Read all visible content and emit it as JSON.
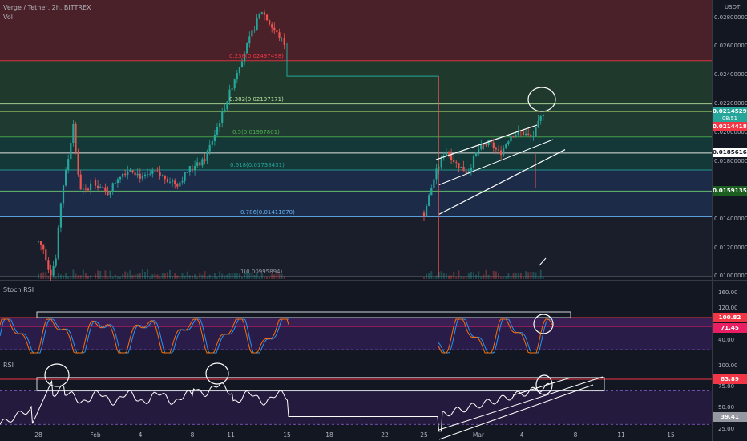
{
  "header": {
    "title": "Verge / Tether, 2h, BITTREX",
    "vol_label": "Vol",
    "currency": "USDT"
  },
  "panes": {
    "stoch_rsi": {
      "title": "Stoch RSI"
    },
    "rsi": {
      "title": "RSI"
    }
  },
  "colors": {
    "background": "#131722",
    "up_candle": "#26a69a",
    "down_candle": "#ef5350",
    "fib_red_zone": "#5a2a30",
    "fib_green_zone": "#1d3b32",
    "fib_teal_zone": "#143a3c",
    "fib_blue_zone": "#1e2a45",
    "channel_line": "#ffffff",
    "osc_purple": "#3a2460",
    "rsi_line": "#ffffff",
    "stoch_k": "#2196f3",
    "stoch_d": "#ff6d00"
  },
  "price_axis": {
    "ticks": [
      "0.02800000",
      "0.02600000",
      "0.02400000",
      "0.02200000",
      "0.02000000",
      "0.01800000",
      "0.01400000",
      "0.01200000",
      "0.01000000"
    ],
    "ylim": [
      0.0098,
      0.0292
    ]
  },
  "price_boxes": [
    {
      "id": "current",
      "text": "0.02145298",
      "sub": "08:51",
      "color": "#26a69a"
    },
    {
      "id": "level_red",
      "text": "0.02144185",
      "color": "#f23645"
    },
    {
      "id": "level_white",
      "text": "0.01856169",
      "color": "#ffffff",
      "text_color": "#131722"
    },
    {
      "id": "level_green",
      "text": "0.01591357",
      "color": "#1b5e20"
    }
  ],
  "fib_levels": [
    {
      "ratio": "0.236",
      "label": "0.236(0.02497498)",
      "price": 0.02497498,
      "color": "#f23645"
    },
    {
      "ratio": "0.382",
      "label": "0.382(0.02197171)",
      "price": 0.02197171,
      "color": "#b7e4a0"
    },
    {
      "ratio": "0.5",
      "label": "0.5(0.01967801)",
      "price": 0.01967801,
      "color": "#4caf50"
    },
    {
      "ratio": "0.618",
      "label": "0.618(0.01738431)",
      "price": 0.01738431,
      "color": "#26a69a"
    },
    {
      "ratio": "0.786",
      "label": "0.786(0.01411870)",
      "price": 0.0141187,
      "color": "#64b5f6"
    },
    {
      "ratio": "1",
      "label": "1(0.00995894)",
      "price": 0.00995894,
      "color": "#9598a1"
    }
  ],
  "stoch_axis": {
    "ticks": [
      "160.00",
      "120.00",
      "40.00"
    ],
    "boxes": [
      {
        "text": "100.82",
        "color": "#f23645"
      },
      {
        "text": "71.45",
        "color": "#e91e63"
      }
    ]
  },
  "rsi_axis": {
    "ticks": [
      "100.00",
      "75.00",
      "50.00",
      "25.00"
    ],
    "boxes": [
      {
        "text": "83.89",
        "color": "#f23645"
      },
      {
        "text": "39.41",
        "color": "#9598a1"
      }
    ]
  },
  "x_axis": {
    "labels": [
      "28",
      "Feb",
      "4",
      "8",
      "11",
      "15",
      "18",
      "22",
      "25",
      "Mar",
      "4",
      "8",
      "11",
      "15"
    ]
  },
  "chart_data": {
    "type": "candlestick",
    "title": "Verge / Tether, 2h, BITTREX",
    "ylim": [
      0.0098,
      0.0292
    ],
    "x_labels": [
      "28",
      "Feb",
      "4",
      "8",
      "11",
      "15",
      "18",
      "22",
      "25",
      "Mar",
      "4",
      "8",
      "11",
      "15"
    ],
    "series": [
      {
        "name": "price",
        "segments": [
          {
            "from": "28",
            "to": "Feb",
            "path": [
              0.0124,
              0.0118,
              0.0101,
              0.0112,
              0.0158,
              0.0178,
              0.0206,
              0.0163,
              0.0158,
              0.0165
            ]
          },
          {
            "from": "Feb",
            "to": "8",
            "path": [
              0.0165,
              0.0157,
              0.017,
              0.0175,
              0.0168,
              0.0172,
              0.0168,
              0.0164,
              0.0175
            ]
          },
          {
            "from": "8",
            "to": "15",
            "path": [
              0.0175,
              0.018,
              0.02,
              0.0222,
              0.0245,
              0.0265,
              0.0285,
              0.0272,
              0.0262
            ]
          },
          {
            "from": "15",
            "to": "25",
            "path": [
              0.0239,
              0.0239
            ]
          },
          {
            "from": "25",
            "to": "Mar 5",
            "path": [
              0.0143,
              0.017,
              0.0188,
              0.0178,
              0.0172,
              0.0188,
              0.0193,
              0.0185,
              0.0198,
              0.02,
              0.0196,
              0.0214
            ]
          }
        ]
      }
    ],
    "stoch_rsi": {
      "levels": [
        100.82,
        71.45
      ]
    },
    "rsi": {
      "levels": [
        83.89,
        39.41
      ]
    }
  }
}
